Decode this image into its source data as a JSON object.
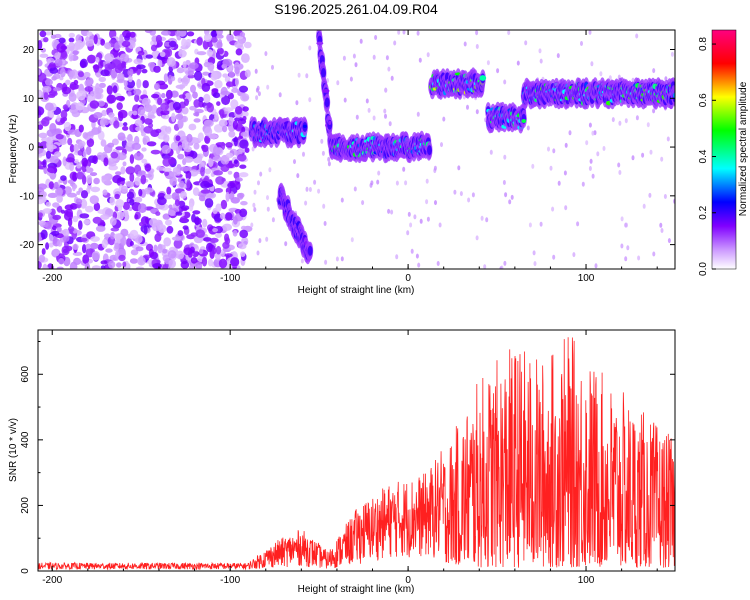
{
  "title": "S196.2025.261.04.09.R04",
  "chart_data": [
    {
      "type": "heatmap",
      "name": "spectrogram",
      "xlabel": "Height of straight line (km)",
      "ylabel": "Frequency (Hz)",
      "xlim": [
        -208,
        150
      ],
      "ylim": [
        -25,
        24
      ],
      "x_ticks": [
        -200,
        -100,
        0,
        100
      ],
      "y_ticks": [
        -20,
        -10,
        0,
        10,
        20
      ],
      "colorbar": {
        "label": "Normalized spectral amplitude",
        "range": [
          0,
          0.85
        ],
        "ticks": [
          0.0,
          0.2,
          0.4,
          0.6,
          0.8
        ],
        "colormap": [
          "#ffffff",
          "#cc99ff",
          "#8000ff",
          "#0000ff",
          "#00ffff",
          "#00ff00",
          "#ffff00",
          "#ff0000",
          "#ff007f"
        ]
      },
      "tracks": [
        {
          "x_start": -208,
          "x_end": -90,
          "description_freq": "broadband noise",
          "level": 0.15
        },
        {
          "x_start": -88,
          "x_end": -58,
          "freq": 3,
          "level": 0.3
        },
        {
          "x_start": -72,
          "x_end": -55,
          "freq_from": -10,
          "freq_to": -22,
          "level": 0.2
        },
        {
          "x_start": -50,
          "x_end": -43,
          "freq_from": 22,
          "freq_to": 0,
          "level": 0.15
        },
        {
          "x_start": -43,
          "x_end": 12,
          "freq": 0,
          "level": 0.4
        },
        {
          "x_start": 13,
          "x_end": 42,
          "freq": 13,
          "level": 0.5
        },
        {
          "x_start": 45,
          "x_end": 65,
          "freq": 6,
          "level": 0.4
        },
        {
          "x_start": 65,
          "x_end": 150,
          "freq": 11,
          "level": 0.45
        }
      ]
    },
    {
      "type": "line",
      "name": "snr",
      "xlabel": "Height of straight line (km)",
      "ylabel": "SNR (10 * v/v)",
      "xlim": [
        -208,
        150
      ],
      "ylim": [
        0,
        735
      ],
      "x_ticks": [
        -200,
        -100,
        0,
        100
      ],
      "y_ticks": [
        0,
        200,
        400,
        600
      ],
      "color": "#ff0000",
      "envelope": [
        {
          "x": -208,
          "low": 5,
          "high": 25
        },
        {
          "x": -90,
          "low": 5,
          "high": 25
        },
        {
          "x": -75,
          "low": 10,
          "high": 90
        },
        {
          "x": -60,
          "low": 15,
          "high": 130
        },
        {
          "x": -45,
          "low": 5,
          "high": 60
        },
        {
          "x": -28,
          "low": 20,
          "high": 200
        },
        {
          "x": -10,
          "low": 40,
          "high": 270
        },
        {
          "x": 10,
          "low": 40,
          "high": 300
        },
        {
          "x": 25,
          "low": 20,
          "high": 420
        },
        {
          "x": 40,
          "low": 10,
          "high": 590
        },
        {
          "x": 60,
          "low": 10,
          "high": 700
        },
        {
          "x": 75,
          "low": 10,
          "high": 650
        },
        {
          "x": 90,
          "low": 10,
          "high": 730
        },
        {
          "x": 110,
          "low": 10,
          "high": 600
        },
        {
          "x": 130,
          "low": 10,
          "high": 500
        },
        {
          "x": 150,
          "low": 10,
          "high": 400
        }
      ]
    }
  ]
}
